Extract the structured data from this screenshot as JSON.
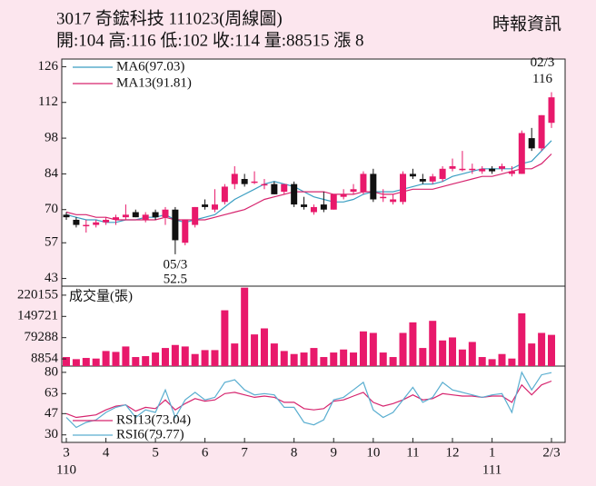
{
  "chart_data": [
    {
      "type": "candlestick",
      "title": "3017  奇鋐科技 111023(周線圖)",
      "subtitle": "開:104 高:116 低:102 收:114 量:88515 漲 8",
      "source": "時報資訊",
      "categories": [
        "3",
        null,
        null,
        null,
        "4",
        null,
        null,
        null,
        null,
        "5",
        null,
        null,
        null,
        null,
        "6",
        null,
        null,
        null,
        "7",
        null,
        null,
        null,
        null,
        "8",
        null,
        null,
        null,
        "9",
        null,
        null,
        null,
        "10",
        null,
        null,
        null,
        "11",
        null,
        null,
        null,
        "12",
        null,
        null,
        null,
        "1",
        null,
        null,
        null,
        null,
        null,
        "2/3"
      ],
      "category_sublabels": [
        "110",
        null,
        null,
        null,
        null,
        null,
        null,
        null,
        null,
        null,
        null,
        null,
        null,
        null,
        null,
        null,
        null,
        null,
        null,
        null,
        null,
        null,
        null,
        null,
        null,
        null,
        null,
        null,
        null,
        null,
        null,
        null,
        null,
        null,
        null,
        null,
        null,
        null,
        null,
        null,
        null,
        null,
        null,
        "111",
        null,
        null,
        null,
        null,
        null,
        null
      ],
      "open": [
        68,
        66,
        64,
        64,
        65,
        66,
        67,
        69,
        66,
        69,
        67,
        70,
        57,
        64,
        72,
        70,
        73,
        80,
        82,
        81,
        80,
        80,
        77,
        80,
        72,
        69,
        72,
        70,
        75,
        77,
        77,
        84,
        75,
        73,
        73,
        84,
        82,
        81,
        82,
        86,
        86,
        86,
        85,
        86,
        86,
        84,
        84,
        98,
        94,
        104
      ],
      "high": [
        69,
        67,
        66,
        66,
        67,
        68,
        72,
        70,
        69,
        70,
        71,
        71,
        66,
        71,
        74,
        78,
        80,
        87,
        84,
        85,
        82,
        81,
        80,
        81,
        75,
        72,
        77,
        76,
        78,
        80,
        85,
        86,
        78,
        76,
        85,
        86,
        84,
        84,
        87,
        90,
        93,
        88,
        87,
        87,
        88,
        87,
        101,
        102,
        107,
        116
      ],
      "low": [
        66,
        63,
        61,
        63,
        64,
        64,
        66,
        67,
        65,
        66,
        64,
        52.5,
        56,
        63,
        70,
        69,
        72,
        78,
        79,
        80,
        78,
        76,
        76,
        71,
        70,
        68,
        69,
        70,
        74,
        76,
        76,
        73,
        73,
        72,
        72,
        82,
        80,
        80,
        81,
        85,
        85,
        84,
        84,
        84,
        85,
        83,
        84,
        93,
        93,
        102
      ],
      "close": [
        67,
        64,
        64,
        65,
        66,
        67,
        68,
        67,
        68,
        67,
        70,
        58,
        66,
        71,
        71,
        72,
        79,
        84,
        80,
        81,
        80,
        76,
        80,
        72,
        71,
        71,
        70,
        76,
        76,
        78,
        84,
        74,
        75,
        74,
        84,
        83,
        81,
        83,
        86,
        87,
        86,
        86,
        86,
        85,
        87,
        85,
        100,
        94,
        107,
        114
      ],
      "up_color": "#e8196b",
      "down_color": "#111111",
      "series": [
        {
          "name": "MA6(97.03)",
          "color": "#3a9ec2",
          "values": [
            68,
            67,
            66,
            66,
            65,
            65,
            66,
            66,
            67,
            67,
            68,
            66,
            65,
            66,
            67,
            68,
            71,
            74,
            76,
            78,
            80,
            81,
            80,
            79,
            77,
            75,
            74,
            73,
            73,
            74,
            76,
            77,
            77,
            77,
            78,
            79,
            80,
            80,
            81,
            83,
            84,
            85,
            86,
            86,
            86,
            86,
            88,
            89,
            93,
            97.03
          ]
        },
        {
          "name": "MA13(91.81)",
          "color": "#d6246e",
          "values": [
            69,
            68,
            68,
            67,
            67,
            66,
            66,
            66,
            66,
            66,
            67,
            66,
            66,
            66,
            66,
            67,
            68,
            69,
            70,
            72,
            74,
            75,
            76,
            77,
            77,
            77,
            77,
            76,
            76,
            76,
            77,
            77,
            76,
            76,
            77,
            78,
            78,
            78,
            79,
            80,
            81,
            82,
            83,
            83,
            84,
            85,
            86,
            86,
            88,
            91.81
          ]
        }
      ],
      "annotations": [
        {
          "date": "05/3",
          "value": 52.5
        },
        {
          "date": "02/3",
          "value": 116
        }
      ],
      "ylim": [
        40,
        129
      ],
      "yticks": [
        43,
        57,
        70,
        84,
        98,
        112,
        126
      ]
    },
    {
      "type": "bar",
      "title": "成交量(張)",
      "color": "#e8196b",
      "values": [
        15000,
        8000,
        12000,
        10000,
        35000,
        32000,
        50000,
        15000,
        18000,
        30000,
        45000,
        55000,
        50000,
        25000,
        38000,
        38000,
        170000,
        60000,
        245000,
        90000,
        110000,
        60000,
        35000,
        25000,
        30000,
        45000,
        15000,
        30000,
        40000,
        30000,
        100000,
        95000,
        30000,
        15000,
        95000,
        130000,
        45000,
        135000,
        70000,
        80000,
        40000,
        65000,
        15000,
        8000,
        25000,
        10000,
        160000,
        60000,
        95000,
        88515
      ],
      "ylim": [
        -15000,
        250000
      ],
      "yticks": [
        8854,
        79288,
        149721,
        220155
      ]
    },
    {
      "type": "line",
      "series": [
        {
          "name": "RSI13(73.04)",
          "color": "#d6246e",
          "values": [
            47,
            44,
            45,
            46,
            50,
            53,
            54,
            49,
            52,
            51,
            58,
            50,
            55,
            59,
            57,
            58,
            63,
            64,
            62,
            60,
            61,
            60,
            56,
            56,
            51,
            50,
            51,
            57,
            58,
            61,
            64,
            56,
            53,
            55,
            58,
            62,
            58,
            59,
            63,
            62,
            61,
            61,
            60,
            61,
            61,
            56,
            70,
            62,
            70,
            73.04
          ]
        },
        {
          "name": "RSI6(79.77)",
          "color": "#5aaed0",
          "values": [
            44,
            36,
            40,
            42,
            48,
            52,
            54,
            44,
            50,
            48,
            66,
            44,
            58,
            64,
            58,
            60,
            72,
            74,
            66,
            62,
            63,
            62,
            52,
            52,
            40,
            38,
            42,
            58,
            60,
            66,
            72,
            50,
            44,
            48,
            58,
            68,
            56,
            60,
            72,
            66,
            64,
            62,
            60,
            62,
            63,
            48,
            80,
            66,
            78,
            79.77
          ]
        }
      ],
      "ylim": [
        24,
        85
      ],
      "yticks": [
        30,
        47,
        63,
        80
      ]
    }
  ]
}
